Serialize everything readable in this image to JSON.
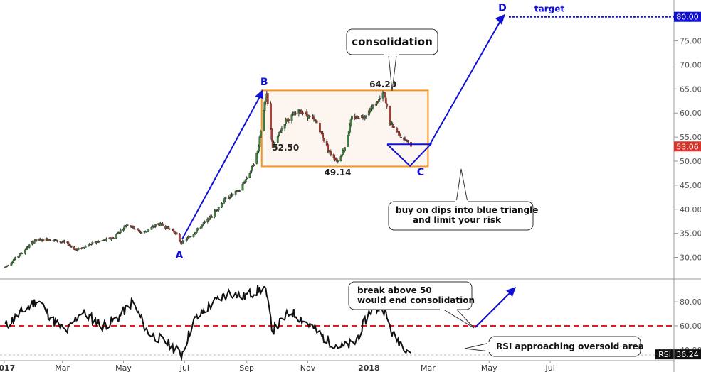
{
  "chart_data": [
    {
      "type": "candlestick",
      "ylim": [
        25.5,
        83.5
      ],
      "y_ticks": [
        "30.00",
        "35.00",
        "40.00",
        "45.00",
        "50.00",
        "55.00",
        "60.00",
        "65.00",
        "70.00",
        "75.00",
        "80.00"
      ],
      "x_ticks": [
        "2017",
        "Mar",
        "May",
        "Jul",
        "Sep",
        "Nov",
        "2018",
        "Mar",
        "May",
        "Jul"
      ],
      "bold_ticks": [
        "2017",
        "2018"
      ],
      "last_price": "53.06",
      "target_price": "80.00",
      "price_path": [
        [
          "2017-01-03",
          28.0
        ],
        [
          "2017-01-20",
          31.0
        ],
        [
          "2017-02-01",
          33.5
        ],
        [
          "2017-02-15",
          33.8
        ],
        [
          "2017-03-05",
          33.0
        ],
        [
          "2017-03-15",
          31.5
        ],
        [
          "2017-04-01",
          33.0
        ],
        [
          "2017-04-20",
          34.0
        ],
        [
          "2017-05-05",
          37.0
        ],
        [
          "2017-05-20",
          35.0
        ],
        [
          "2017-06-05",
          37.0
        ],
        [
          "2017-06-20",
          35.5
        ],
        [
          "2017-06-28",
          33.0
        ],
        [
          "2017-07-10",
          35.0
        ],
        [
          "2017-07-25",
          38.0
        ],
        [
          "2017-08-10",
          42.0
        ],
        [
          "2017-08-25",
          44.0
        ],
        [
          "2017-09-05",
          48.0
        ],
        [
          "2017-09-12",
          52.0
        ],
        [
          "2017-09-18",
          61.0
        ],
        [
          "2017-09-21",
          63.5
        ],
        [
          "2017-09-27",
          53.0
        ],
        [
          "2017-10-10",
          58.5
        ],
        [
          "2017-10-25",
          60.5
        ],
        [
          "2017-11-10",
          58.0
        ],
        [
          "2017-11-22",
          52.0
        ],
        [
          "2017-12-01",
          50.0
        ],
        [
          "2017-12-08",
          53.0
        ],
        [
          "2017-12-15",
          59.0
        ],
        [
          "2017-12-28",
          59.5
        ],
        [
          "2018-01-10",
          62.5
        ],
        [
          "2018-01-16",
          64.0
        ],
        [
          "2018-01-22",
          58.0
        ],
        [
          "2018-02-01",
          55.5
        ],
        [
          "2018-02-12",
          53.06
        ]
      ],
      "consolidation": {
        "from": "2017-09-16",
        "to": "2018-03-01",
        "high": 64.7,
        "low": 48.9
      },
      "levels": {
        "high": {
          "label": "64.20",
          "date": "2018-01-15",
          "value": 64.2
        },
        "low_sep": {
          "label": "52.50",
          "date": "2017-09-27",
          "value": 52.5
        },
        "low_dec": {
          "label": "49.14",
          "date": "2017-12-03",
          "value": 49.14
        }
      },
      "points": [
        {
          "label": "A",
          "date": "2017-06-30",
          "value": 33.5
        },
        {
          "label": "B",
          "date": "2017-09-17",
          "value": 64.0
        },
        {
          "label": "C",
          "date": "2018-02-11",
          "value": 49.0
        },
        {
          "label": "D",
          "date": "2018-05-15",
          "value": 80.0
        }
      ],
      "target_label": "target",
      "annotations": {
        "consolidation": "consolidation",
        "buy_line1": "buy on dips into blue triangle",
        "buy_line2": "and limit your risk"
      },
      "colors": {
        "up": "#3b8a3b",
        "down": "#c0392b",
        "box": "#f5941e",
        "box_fill": "#fdf6f0",
        "arrow": "#1010d8",
        "price_tag": "#d9342b",
        "target_tag": "#1010d8"
      }
    },
    {
      "type": "line",
      "name": "RSI",
      "ylim": [
        31,
        99
      ],
      "y_ticks": [
        "40.00",
        "60.00",
        "80.00"
      ],
      "overbought_line": 60,
      "last_value": "36.24",
      "path": [
        [
          "2017-01-03",
          60
        ],
        [
          "2017-01-25",
          75
        ],
        [
          "2017-02-05",
          82
        ],
        [
          "2017-02-20",
          64
        ],
        [
          "2017-03-05",
          55
        ],
        [
          "2017-03-20",
          72
        ],
        [
          "2017-04-10",
          60
        ],
        [
          "2017-04-25",
          66
        ],
        [
          "2017-05-10",
          80
        ],
        [
          "2017-05-25",
          55
        ],
        [
          "2017-06-15",
          45
        ],
        [
          "2017-06-28",
          36
        ],
        [
          "2017-07-10",
          64
        ],
        [
          "2017-07-28",
          78
        ],
        [
          "2017-08-15",
          88
        ],
        [
          "2017-08-28",
          84
        ],
        [
          "2017-09-08",
          88
        ],
        [
          "2017-09-19",
          92
        ],
        [
          "2017-09-27",
          56
        ],
        [
          "2017-10-15",
          72
        ],
        [
          "2017-11-01",
          62
        ],
        [
          "2017-11-20",
          48
        ],
        [
          "2017-12-05",
          42
        ],
        [
          "2017-12-18",
          46
        ],
        [
          "2018-01-02",
          72
        ],
        [
          "2018-01-15",
          76
        ],
        [
          "2018-01-25",
          52
        ],
        [
          "2018-02-12",
          38
        ]
      ],
      "annotations": {
        "break_line1": "break above 50",
        "break_line2": "would end consolidation",
        "oversold": "RSI approaching oversold area"
      },
      "colors": {
        "line": "#111111",
        "dashed": "#e41a1c",
        "tag": "#111111"
      }
    }
  ]
}
